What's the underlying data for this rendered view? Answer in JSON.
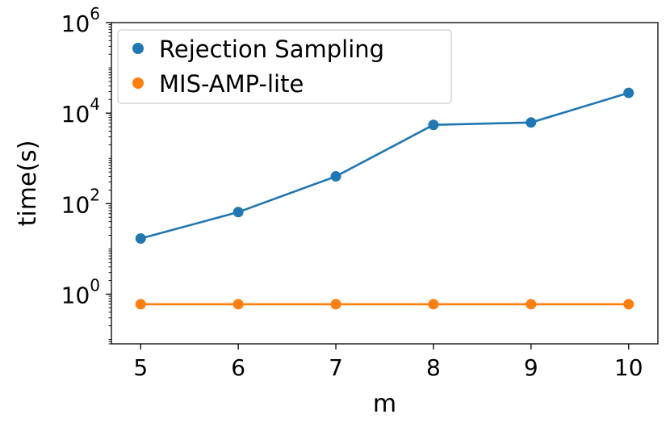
{
  "chart_data": {
    "type": "line",
    "xlabel": "m",
    "ylabel": "time(s)",
    "yscale": "log",
    "x": [
      5,
      6,
      7,
      8,
      9,
      10
    ],
    "xlim": [
      4.7,
      10.3
    ],
    "ylim": [
      0.08,
      1000000
    ],
    "x_ticks": [
      {
        "value": 5,
        "label": "5"
      },
      {
        "value": 6,
        "label": "6"
      },
      {
        "value": 7,
        "label": "7"
      },
      {
        "value": 8,
        "label": "8"
      },
      {
        "value": 9,
        "label": "9"
      },
      {
        "value": 10,
        "label": "10"
      }
    ],
    "y_ticks": [
      {
        "value": 1,
        "base": "10",
        "exp": "0"
      },
      {
        "value": 100,
        "base": "10",
        "exp": "2"
      },
      {
        "value": 10000,
        "base": "10",
        "exp": "4"
      },
      {
        "value": 1000000,
        "base": "10",
        "exp": "6"
      }
    ],
    "grid": false,
    "legend_position": "top-left",
    "series": [
      {
        "name": "Rejection Sampling",
        "color": "#1f77b4",
        "values": [
          17,
          65,
          400,
          5500,
          6200,
          28000
        ]
      },
      {
        "name": "MIS-AMP-lite",
        "color": "#ff7f0e",
        "values": [
          0.6,
          0.6,
          0.6,
          0.6,
          0.6,
          0.6
        ]
      }
    ]
  }
}
